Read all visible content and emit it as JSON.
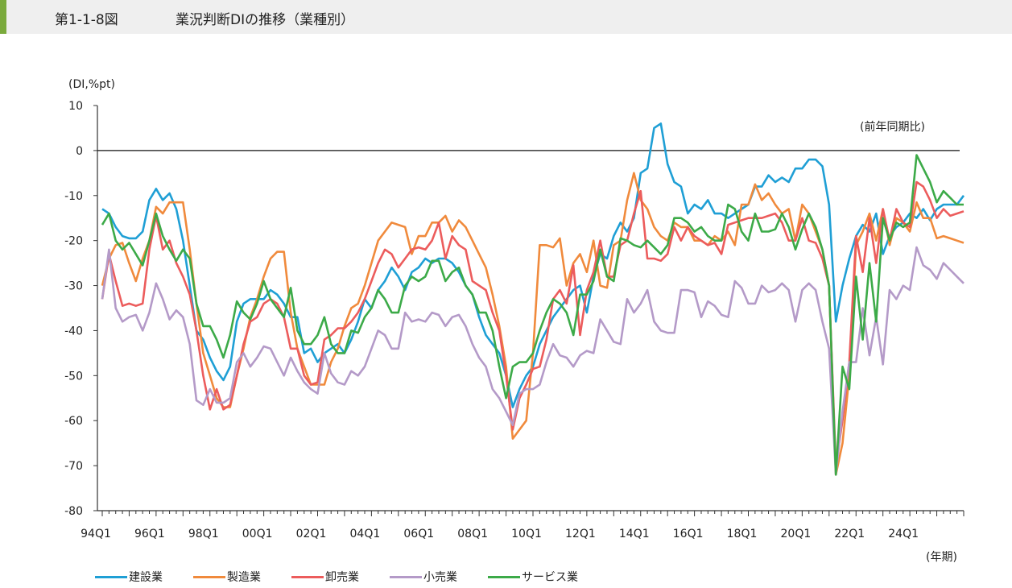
{
  "header": {
    "figure_number": "第1-1-8図",
    "title": "業況判断DIの推移（業種別）",
    "accent_color": "#7aaa3c"
  },
  "chart_data": {
    "type": "line",
    "title": "業況判断DIの推移（業種別）",
    "ylabel": "(DI,%pt)",
    "xlabel": "(年期)",
    "annotation": "(前年同期比)",
    "ylim": [
      -80,
      10
    ],
    "yticks": [
      10,
      0,
      -10,
      -20,
      -30,
      -40,
      -50,
      -60,
      -70,
      -80
    ],
    "x_start": "94Q1",
    "x_end": "25Q1",
    "xtick_labels": [
      "94Q1",
      "96Q1",
      "98Q1",
      "00Q1",
      "02Q1",
      "04Q1",
      "06Q1",
      "08Q1",
      "10Q1",
      "12Q1",
      "14Q1",
      "16Q1",
      "18Q1",
      "20Q1",
      "22Q1",
      "24Q1"
    ],
    "reference_line": 0,
    "grid": false,
    "legend_position": "bottom",
    "series": [
      {
        "name": "建設業",
        "color": "#1f9fd5",
        "values": [
          -13,
          -14,
          -17,
          -19,
          -19.5,
          -19.5,
          -18,
          -11,
          -8.5,
          -11,
          -9.5,
          -13,
          -20,
          -30,
          -40,
          -42,
          -46,
          -49,
          -51,
          -48,
          -38,
          -34,
          -33,
          -33,
          -33,
          -31,
          -32,
          -34,
          -37,
          -37,
          -45,
          -44,
          -47,
          -45,
          -44,
          -43,
          -45,
          -42,
          -38,
          -33,
          -35,
          -31,
          -29,
          -26,
          -28,
          -31,
          -27,
          -26,
          -24,
          -25,
          -24,
          -24,
          -25,
          -27,
          -30,
          -32,
          -37,
          -41,
          -43,
          -45,
          -50,
          -57,
          -53,
          -50,
          -48,
          -43,
          -40,
          -37,
          -35,
          -33,
          -31,
          -30,
          -36,
          -28,
          -23,
          -24,
          -19,
          -16,
          -18,
          -15,
          -5,
          -4,
          5,
          6,
          -3,
          -7,
          -8,
          -14,
          -12,
          -13,
          -11,
          -14,
          -14,
          -15,
          -14,
          -13,
          -12,
          -8,
          -8,
          -5.5,
          -7,
          -6,
          -7,
          -4,
          -4,
          -2,
          -2,
          -3.5,
          -12,
          -38,
          -30,
          -24,
          -19,
          -16.5,
          -18,
          -14,
          -23,
          -19,
          -17,
          -16,
          -14,
          -15,
          -13,
          -15.5,
          -13,
          -12,
          -12,
          -12,
          -10
        ]
      },
      {
        "name": "製造業",
        "color": "#f08a3c",
        "values": [
          -30,
          -24,
          -21,
          -20.5,
          -25,
          -29,
          -24,
          -20,
          -12.5,
          -14,
          -11.5,
          -11.5,
          -11.5,
          -22,
          -34,
          -45,
          -50,
          -55,
          -57,
          -57,
          -50,
          -44,
          -37,
          -33,
          -28,
          -24,
          -22.5,
          -22.5,
          -36,
          -44,
          -48,
          -52,
          -52,
          -52,
          -47,
          -44,
          -39,
          -35,
          -34,
          -30,
          -25,
          -20,
          -18,
          -16,
          -16.5,
          -17,
          -23,
          -19,
          -19,
          -16,
          -16,
          -14.5,
          -18,
          -15.5,
          -17,
          -20,
          -23,
          -26,
          -32,
          -39,
          -48,
          -64,
          -62,
          -60,
          -45,
          -21,
          -21,
          -21.5,
          -19.5,
          -30,
          -25,
          -23,
          -27,
          -20,
          -30,
          -30.5,
          -21,
          -20,
          -11,
          -5,
          -11,
          -13,
          -17,
          -19,
          -20,
          -16,
          -17,
          -17,
          -20,
          -20,
          -21,
          -19,
          -20,
          -18,
          -21,
          -12,
          -12,
          -7.5,
          -11,
          -9.5,
          -12,
          -14,
          -13,
          -20,
          -12,
          -14,
          -18,
          -22,
          -30,
          -72,
          -65,
          -50,
          -21,
          -18,
          -14,
          -20,
          -13,
          -21,
          -15,
          -16,
          -18,
          -11.5,
          -15,
          -15,
          -19.5,
          -19,
          -19.5,
          -20,
          -20.5
        ]
      },
      {
        "name": "卸売業",
        "color": "#ec5c5c",
        "values": [
          -33,
          -23,
          -29,
          -34.5,
          -34,
          -34.5,
          -34,
          -22,
          -14.5,
          -22,
          -20,
          -25,
          -28,
          -32,
          -40,
          -50,
          -57.5,
          -53,
          -57.5,
          -56.5,
          -50,
          -43,
          -38,
          -37,
          -34,
          -33,
          -34,
          -37,
          -44,
          -44,
          -50,
          -52,
          -51.5,
          -42,
          -41,
          -39.5,
          -39.5,
          -38,
          -36,
          -33,
          -29,
          -25,
          -22,
          -23,
          -26,
          -24,
          -22,
          -21.5,
          -22,
          -20,
          -16,
          -24,
          -19,
          -21,
          -22,
          -29,
          -30,
          -31,
          -36,
          -40,
          -50,
          -62,
          -55,
          -52,
          -48.5,
          -48,
          -42,
          -33,
          -31,
          -34,
          -25.5,
          -41,
          -31,
          -27,
          -20,
          -28,
          -28,
          -21,
          -20,
          -14,
          -9,
          -24,
          -24,
          -24.5,
          -23,
          -17,
          -20,
          -17,
          -19,
          -20,
          -21,
          -20.5,
          -23,
          -16.5,
          -16,
          -15.5,
          -15,
          -15,
          -15,
          -14.5,
          -14,
          -16,
          -20,
          -20,
          -15,
          -20,
          -20.5,
          -24,
          -30,
          -70,
          -60,
          -47,
          -19,
          -27,
          -15,
          -25,
          -13,
          -20,
          -13,
          -16,
          -17,
          -7,
          -8,
          -11,
          -15,
          -13,
          -14.5,
          -14,
          -13.5
        ]
      },
      {
        "name": "小売業",
        "color": "#b49ac8",
        "values": [
          -33,
          -22,
          -35,
          -38,
          -37,
          -36.5,
          -40,
          -36,
          -29.5,
          -33,
          -37.5,
          -35.5,
          -37,
          -43,
          -55.5,
          -56.5,
          -53,
          -56,
          -56,
          -55,
          -47,
          -45,
          -48,
          -46,
          -43.5,
          -44,
          -47,
          -50,
          -46,
          -49,
          -51.5,
          -53,
          -54,
          -45,
          -49.5,
          -51.5,
          -52,
          -49,
          -50,
          -48,
          -44,
          -40,
          -41,
          -44,
          -44,
          -36,
          -38,
          -37.5,
          -38,
          -36,
          -36.5,
          -39,
          -37,
          -36.5,
          -39,
          -43,
          -46,
          -48,
          -53,
          -55,
          -58,
          -61,
          -54,
          -53,
          -53,
          -52,
          -47,
          -43,
          -45.5,
          -46,
          -48,
          -45.5,
          -44.5,
          -45,
          -37.5,
          -40,
          -42.5,
          -43,
          -33,
          -36,
          -34,
          -31,
          -38,
          -40,
          -40.5,
          -40.5,
          -31,
          -31,
          -31.5,
          -37,
          -33.5,
          -34.5,
          -36.5,
          -37,
          -29,
          -30.5,
          -34,
          -34,
          -30,
          -31.5,
          -31,
          -29.5,
          -31,
          -38,
          -31,
          -29.5,
          -31,
          -38,
          -44,
          -72,
          -58,
          -47,
          -47,
          -35,
          -45.5,
          -37,
          -47.5,
          -31,
          -33,
          -30,
          -31,
          -21.5,
          -25.5,
          -26.5,
          -28.5,
          -25,
          -26.5,
          -28,
          -29.5
        ]
      },
      {
        "name": "サービス業",
        "color": "#3caa48",
        "values": [
          -16.5,
          -14,
          -20,
          -22,
          -20.5,
          -23,
          -25.5,
          -20,
          -14,
          -19,
          -22,
          -24.5,
          -22,
          -24,
          -34,
          -39,
          -39,
          -42,
          -46,
          -41,
          -33.5,
          -36,
          -37.5,
          -34,
          -29,
          -33,
          -35,
          -37,
          -30.5,
          -40,
          -43,
          -43,
          -41,
          -37,
          -43,
          -45,
          -45,
          -40,
          -40.5,
          -37,
          -35,
          -31,
          -33,
          -36,
          -36,
          -30,
          -28,
          -29,
          -28,
          -24.5,
          -24.5,
          -29,
          -27,
          -26,
          -30,
          -32,
          -36,
          -36,
          -40,
          -48,
          -55,
          -48,
          -47,
          -47,
          -45,
          -40,
          -36,
          -33,
          -34,
          -36,
          -41,
          -32,
          -32,
          -29,
          -22,
          -28,
          -29,
          -19.5,
          -20,
          -21,
          -21.5,
          -20,
          -21.5,
          -23,
          -21,
          -15,
          -15,
          -16,
          -18,
          -17,
          -19,
          -20,
          -20,
          -12,
          -13,
          -18,
          -20,
          -14,
          -18,
          -18,
          -17.5,
          -14,
          -17,
          -22,
          -17.5,
          -14,
          -17,
          -22,
          -30,
          -72,
          -48,
          -53,
          -28,
          -42,
          -25,
          -38,
          -15,
          -20,
          -16,
          -17,
          -16,
          -1,
          -4,
          -7,
          -11.5,
          -9,
          -10.5,
          -12,
          -12
        ]
      }
    ]
  }
}
